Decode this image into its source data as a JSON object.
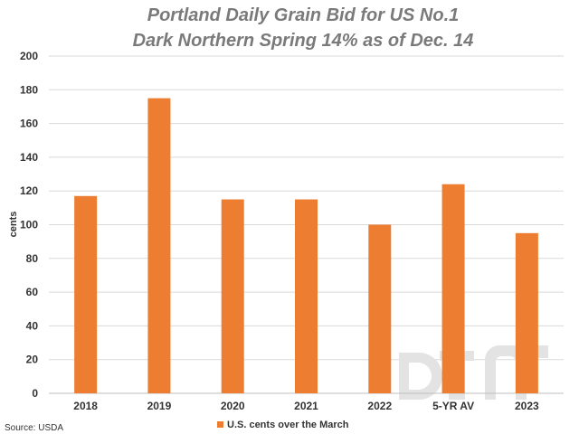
{
  "chart_data": {
    "type": "bar",
    "title_lines": [
      "Portland Daily Grain Bid for US No.1",
      "Dark Northern Spring 14% as of Dec. 14"
    ],
    "ylabel": "cents",
    "xlabel": "",
    "ylim": [
      0,
      200
    ],
    "yticks": [
      0,
      20,
      40,
      60,
      80,
      100,
      120,
      140,
      160,
      180,
      200
    ],
    "grid": true,
    "legend_position": "bottom",
    "categories": [
      "2018",
      "2019",
      "2020",
      "2021",
      "2022",
      "5-YR AV",
      "2023"
    ],
    "series": [
      {
        "name": "U.S. cents over the March",
        "values": [
          117,
          175,
          115,
          115,
          100,
          124,
          95
        ]
      }
    ],
    "source": "Source: USDA",
    "bar_color": "#ed7d31"
  }
}
